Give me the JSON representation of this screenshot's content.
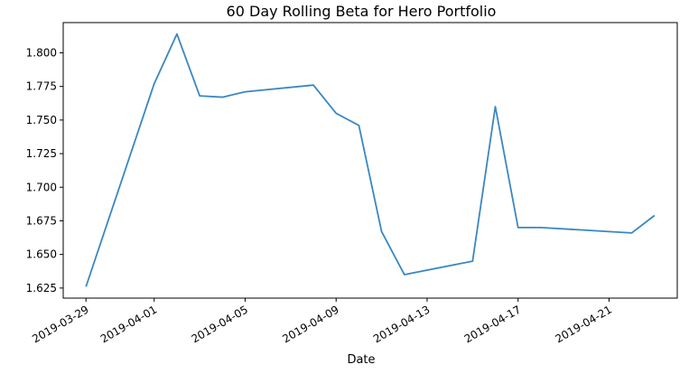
{
  "chart_data": {
    "type": "line",
    "title": "60 Day Rolling Beta for Hero Portfolio",
    "xlabel": "Date",
    "ylabel": "",
    "grid": false,
    "legend": "none",
    "line_color": "#3a87c2",
    "xlim": [
      "2019-03-28",
      "2019-04-24"
    ],
    "ylim": [
      1.6175,
      1.8225
    ],
    "x_ticks": [
      "2019-03-29",
      "2019-04-01",
      "2019-04-05",
      "2019-04-09",
      "2019-04-13",
      "2019-04-17",
      "2019-04-21"
    ],
    "y_ticks": [
      "1.625",
      "1.650",
      "1.675",
      "1.700",
      "1.725",
      "1.750",
      "1.775",
      "1.800"
    ],
    "series": [
      {
        "x": [
          "2019-03-29",
          "2019-04-01",
          "2019-04-02",
          "2019-04-03",
          "2019-04-04",
          "2019-04-05",
          "2019-04-08",
          "2019-04-09",
          "2019-04-10",
          "2019-04-11",
          "2019-04-12",
          "2019-04-15",
          "2019-04-16",
          "2019-04-17",
          "2019-04-18",
          "2019-04-22",
          "2019-04-23"
        ],
        "values": [
          1.626,
          1.777,
          1.814,
          1.768,
          1.767,
          1.771,
          1.776,
          1.755,
          1.746,
          1.667,
          1.635,
          1.645,
          1.76,
          1.67,
          1.67,
          1.666,
          1.679
        ]
      }
    ]
  }
}
